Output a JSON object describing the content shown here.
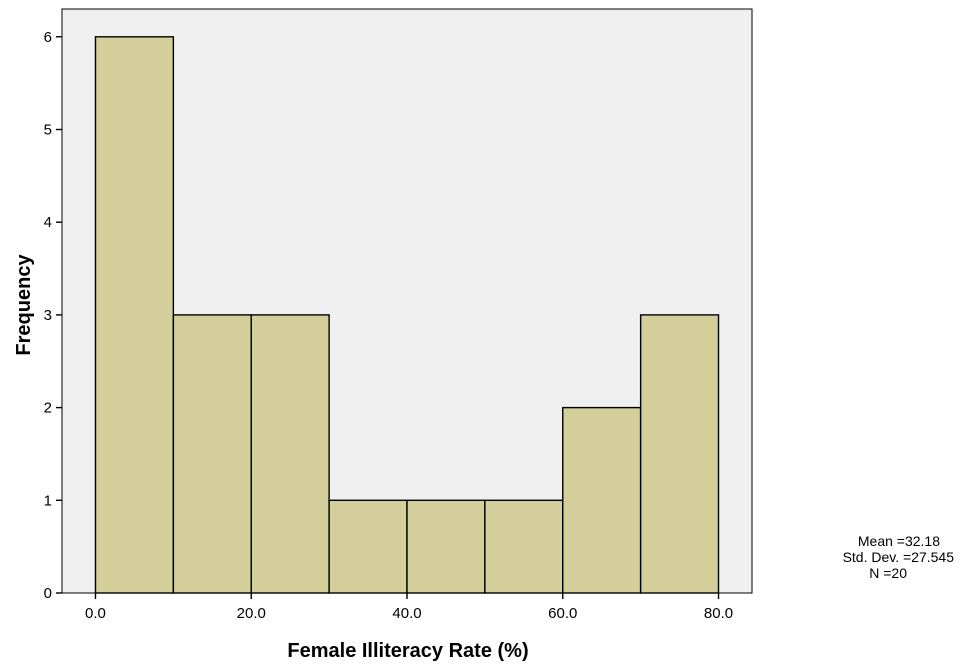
{
  "chart_data": {
    "type": "bar",
    "subtype": "histogram",
    "xlabel": "Female Illiteracy Rate (%)",
    "ylabel": "Frequency",
    "bins": [
      {
        "start": 0,
        "end": 10,
        "count": 6
      },
      {
        "start": 10,
        "end": 20,
        "count": 3
      },
      {
        "start": 20,
        "end": 30,
        "count": 3
      },
      {
        "start": 30,
        "end": 40,
        "count": 1
      },
      {
        "start": 40,
        "end": 50,
        "count": 1
      },
      {
        "start": 50,
        "end": 60,
        "count": 1
      },
      {
        "start": 60,
        "end": 70,
        "count": 2
      },
      {
        "start": 70,
        "end": 80,
        "count": 3
      }
    ],
    "xlim": [
      -4.3,
      84.3
    ],
    "ylim": [
      0,
      6.3
    ],
    "xticks": [
      0,
      20,
      40,
      60,
      80
    ],
    "xtick_labels": [
      "0.0",
      "20.0",
      "40.0",
      "60.0",
      "80.0"
    ],
    "yticks": [
      0,
      1,
      2,
      3,
      4,
      5,
      6
    ],
    "ytick_labels": [
      "0",
      "1",
      "2",
      "3",
      "4",
      "5",
      "6"
    ],
    "grid": false,
    "colors": {
      "bar_fill": "#d3ce9a",
      "bar_stroke": "#000000",
      "plot_bg": "#f0f0f0"
    },
    "stats": {
      "lines": [
        "Mean =32.18",
        "Std. Dev. =27.545",
        "N =20"
      ]
    }
  }
}
